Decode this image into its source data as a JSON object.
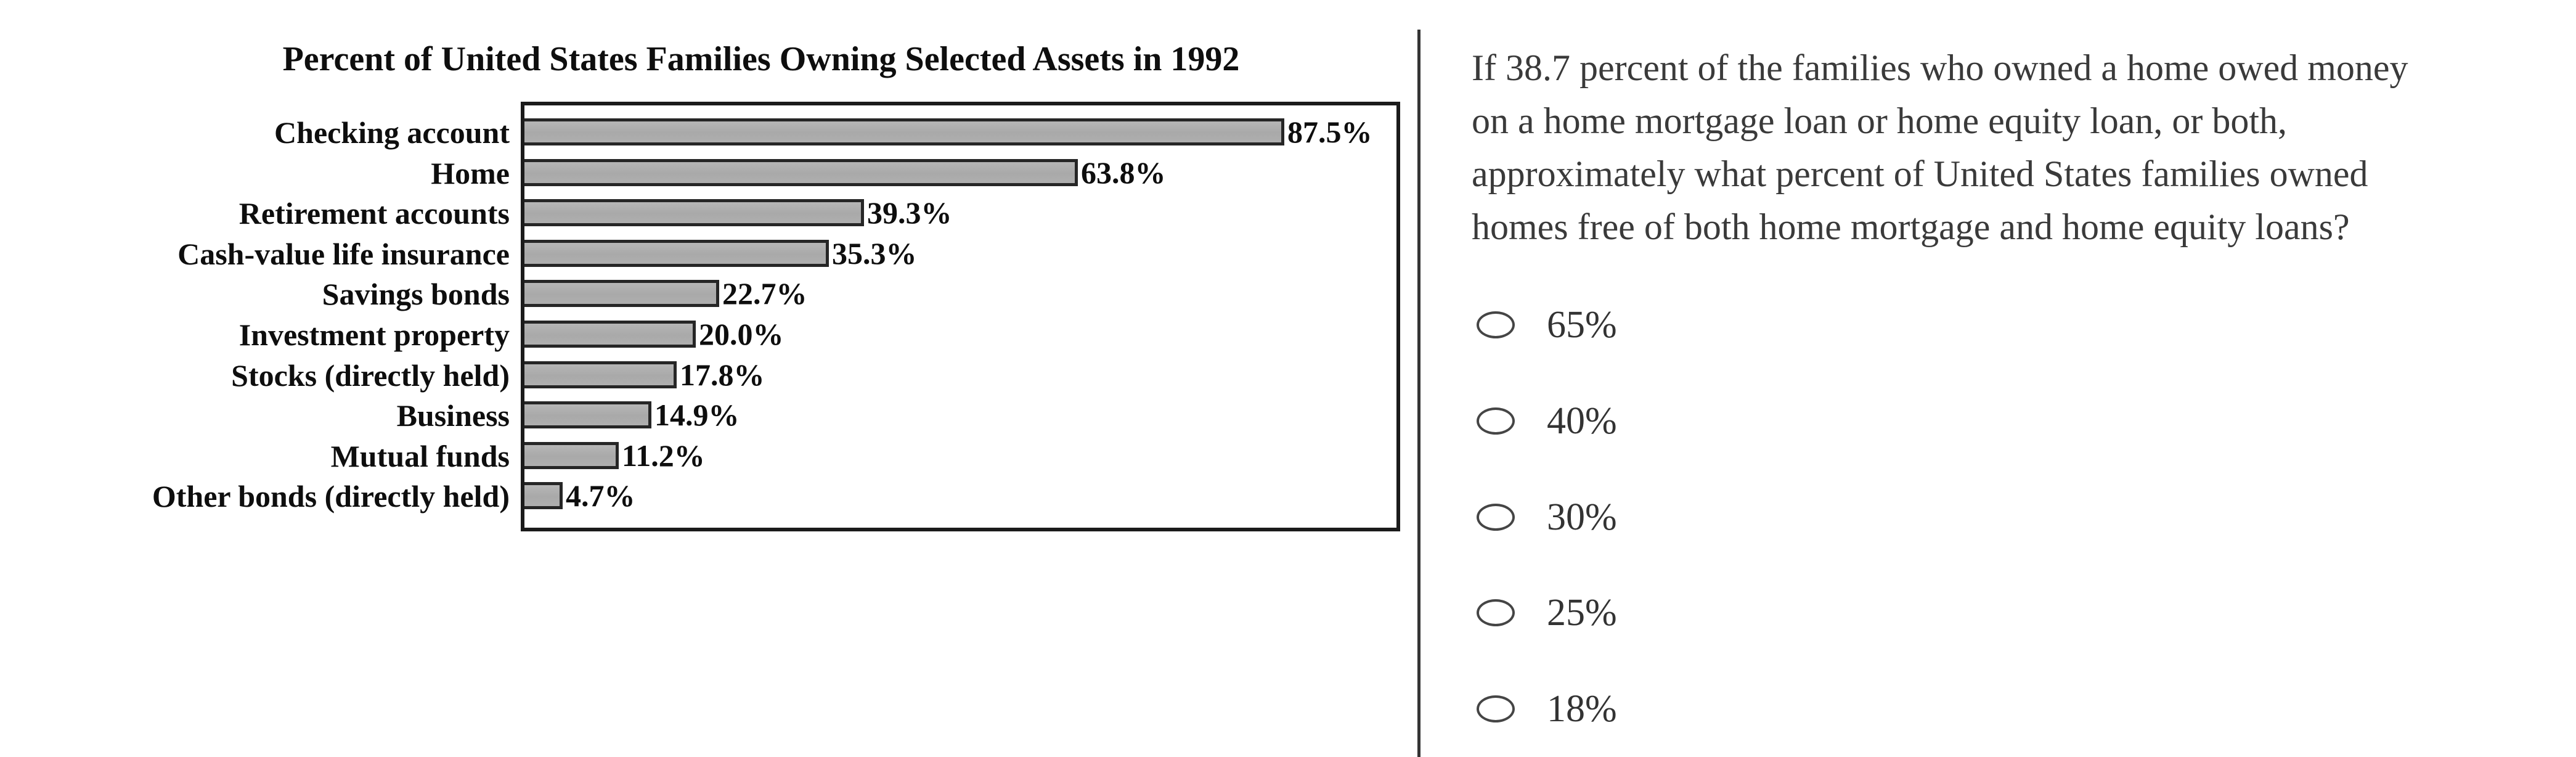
{
  "figure": {
    "title": "Percent of United States Families Owning Selected Assets in 1992"
  },
  "chart_data": {
    "type": "bar",
    "orientation": "horizontal",
    "title": "Percent of United States Families Owning Selected Assets in 1992",
    "categories": [
      "Checking account",
      "Home",
      "Retirement accounts",
      "Cash-value life insurance",
      "Savings bonds",
      "Investment property",
      "Stocks (directly held)",
      "Business",
      "Mutual funds",
      "Other bonds (directly held)"
    ],
    "values": [
      87.5,
      63.8,
      39.3,
      35.3,
      22.7,
      20.0,
      17.8,
      14.9,
      11.2,
      4.7
    ],
    "value_labels": [
      "87.5%",
      "63.8%",
      "39.3%",
      "35.3%",
      "22.7%",
      "20.0%",
      "17.8%",
      "14.9%",
      "11.2%",
      "4.7%"
    ],
    "xlim": [
      0,
      100
    ],
    "grid": false,
    "legend": false,
    "bar_fill": "#ababab",
    "bar_border": "#262626"
  },
  "question": {
    "lines": [
      "If 38.7 percent of the families who owned a home owed money",
      "on a home mortgage loan or home equity loan, or both,",
      "approximately what percent of United States families owned",
      "homes free of both home mortgage and home equity loans?"
    ],
    "options": [
      {
        "label": "65%"
      },
      {
        "label": "40%"
      },
      {
        "label": "30%"
      },
      {
        "label": "25%"
      },
      {
        "label": "18%"
      }
    ]
  }
}
